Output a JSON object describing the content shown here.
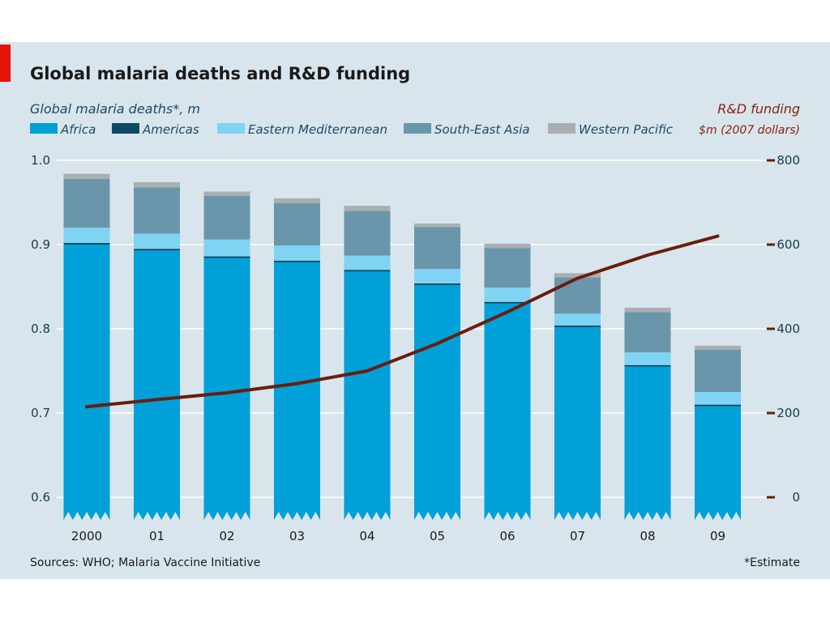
{
  "chart_data": {
    "type": "bar",
    "title": "Global malaria deaths and R&D funding",
    "left_axis_title": "Global malaria deaths*, m",
    "right_axis_title": "R&D funding",
    "right_axis_unit": "$m (2007 dollars)",
    "categories": [
      "2000",
      "01",
      "02",
      "03",
      "04",
      "05",
      "06",
      "07",
      "08",
      "09"
    ],
    "y_left": {
      "min": 0.6,
      "max": 1.0,
      "ticks": [
        1.0,
        0.9,
        0.8,
        0.7,
        0.6
      ],
      "tick_labels": [
        "1.0",
        "0.9",
        "0.8",
        "0.7",
        "0.6"
      ]
    },
    "y_right": {
      "min": 0,
      "max": 800,
      "ticks": [
        800,
        600,
        400,
        200,
        0
      ],
      "tick_labels": [
        "800",
        "600",
        "400",
        "200",
        "0"
      ]
    },
    "stack_series": [
      {
        "name": "Africa",
        "color": "#00a0d8",
        "values": [
          0.9,
          0.893,
          0.884,
          0.879,
          0.868,
          0.852,
          0.83,
          0.802,
          0.755,
          0.708
        ]
      },
      {
        "name": "Americas",
        "color": "#0a4a66",
        "values": [
          0.002,
          0.002,
          0.002,
          0.002,
          0.002,
          0.002,
          0.002,
          0.002,
          0.002,
          0.002
        ]
      },
      {
        "name": "Eastern Mediterranean",
        "color": "#7fd4f4",
        "values": [
          0.018,
          0.018,
          0.02,
          0.018,
          0.017,
          0.017,
          0.017,
          0.014,
          0.015,
          0.015
        ]
      },
      {
        "name": "South-East Asia",
        "color": "#6a96ab",
        "values": [
          0.058,
          0.055,
          0.052,
          0.05,
          0.053,
          0.05,
          0.047,
          0.043,
          0.048,
          0.05
        ]
      },
      {
        "name": "Western Pacific",
        "color": "#a9afb2",
        "values": [
          0.006,
          0.006,
          0.005,
          0.006,
          0.006,
          0.004,
          0.005,
          0.005,
          0.005,
          0.005
        ]
      }
    ],
    "line_series": {
      "name": "R&D funding",
      "color": "#6b1d0c",
      "values": [
        215,
        232,
        248,
        270,
        300,
        365,
        440,
        520,
        575,
        620
      ]
    },
    "axis_break": true,
    "grid": true
  },
  "footnotes": {
    "sources": "Sources: WHO; Malaria Vaccine Initiative",
    "estimate": "*Estimate"
  },
  "colors": {
    "background": "#d8e5ec",
    "accent_red": "#e3120b",
    "left_axis_title": "#1a4a66",
    "right_axis_title": "#8b2310",
    "right_tick_mark": "#6b1d0c",
    "grid": "#ffffff"
  }
}
